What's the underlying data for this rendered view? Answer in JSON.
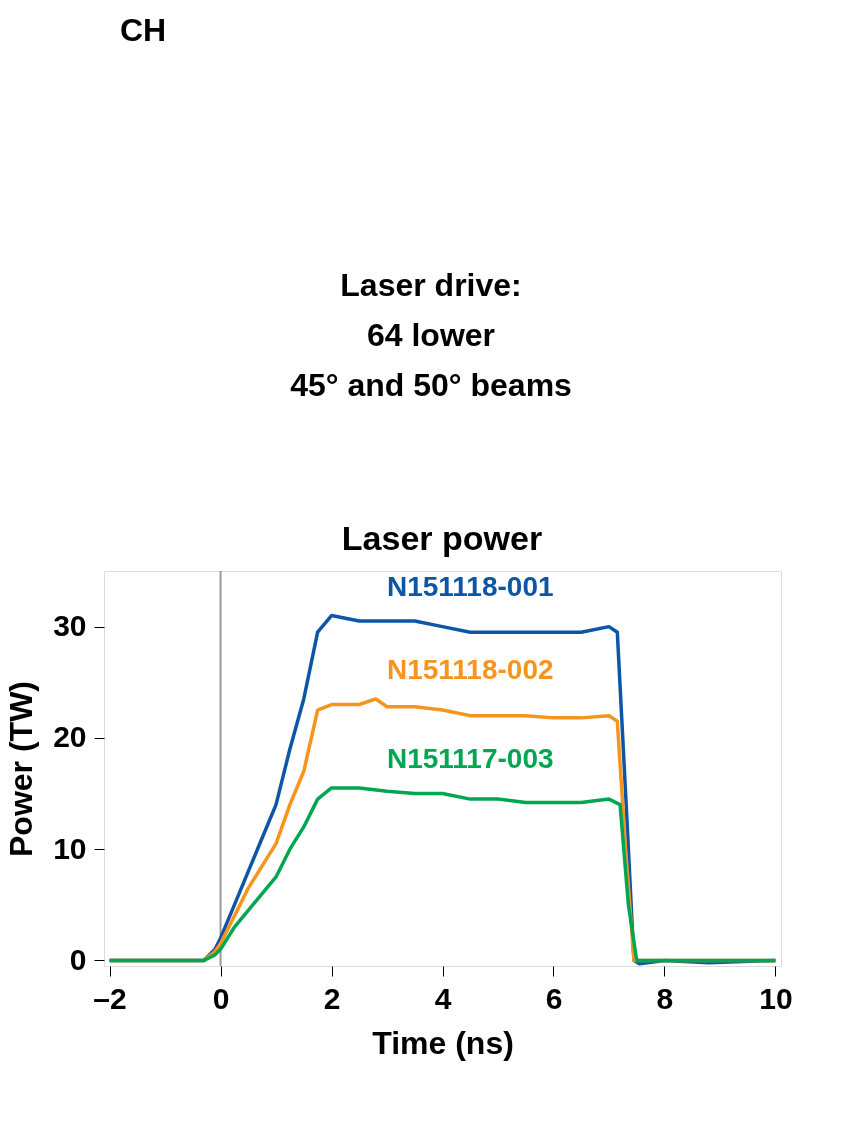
{
  "chart_data": {
    "type": "line",
    "title": "Laser power",
    "xlabel": "Time (ns)",
    "ylabel": "Power (TW)",
    "annotations": [
      "CH",
      "Laser drive:",
      "64 lower",
      "45° and 50° beams"
    ],
    "xlim": [
      -2.1,
      10.1
    ],
    "ylim": [
      -0.5,
      35
    ],
    "xticks": [
      {
        "value": -2,
        "label": "–2"
      },
      0,
      2,
      4,
      6,
      8,
      10
    ],
    "yticks": [
      0,
      10,
      20,
      30
    ],
    "grid": false,
    "legend": false,
    "line_style": "solid",
    "marker": "none",
    "ref_lines": [
      {
        "axis": "x",
        "value": 0,
        "label": null,
        "color": "#999999"
      }
    ],
    "series": [
      {
        "name": "N151118-001",
        "color": "#0d56a6",
        "x": [
          -2,
          -0.3,
          -0.1,
          0,
          0.25,
          0.5,
          0.75,
          1,
          1.25,
          1.5,
          1.75,
          2,
          2.5,
          3,
          3.5,
          4,
          4.5,
          5,
          5.5,
          6,
          6.5,
          7,
          7.15,
          7.3,
          7.45,
          7.55,
          8,
          8.8,
          10
        ],
        "values": [
          0,
          0,
          1,
          2,
          5,
          8,
          11,
          14,
          19,
          23.5,
          29.5,
          31,
          30.5,
          30.5,
          30.5,
          30,
          29.5,
          29.5,
          29.5,
          29.5,
          29.5,
          30,
          29.5,
          15,
          0,
          -0.3,
          0,
          -0.2,
          0
        ]
      },
      {
        "name": "N151118-002",
        "color": "#f7941d",
        "x": [
          -2,
          -0.3,
          -0.1,
          0,
          0.25,
          0.5,
          0.75,
          1,
          1.25,
          1.5,
          1.75,
          2,
          2.5,
          2.8,
          3,
          3.5,
          4,
          4.5,
          5,
          5.5,
          6,
          6.5,
          7,
          7.15,
          7.3,
          7.45,
          8,
          10
        ],
        "values": [
          0,
          0,
          0.8,
          1.5,
          4,
          6.5,
          8.5,
          10.5,
          14,
          17,
          22.5,
          23,
          23,
          23.5,
          22.8,
          22.8,
          22.5,
          22,
          22,
          22,
          21.8,
          21.8,
          22,
          21.5,
          10,
          0,
          0,
          0
        ]
      },
      {
        "name": "N151117-003",
        "color": "#00a651",
        "x": [
          -2,
          -0.3,
          -0.1,
          0,
          0.25,
          0.5,
          0.75,
          1,
          1.25,
          1.5,
          1.75,
          2,
          2.5,
          3,
          3.5,
          4,
          4.5,
          5,
          5.5,
          6,
          6.5,
          7,
          7.2,
          7.35,
          7.5,
          8,
          10
        ],
        "values": [
          0,
          0,
          0.5,
          1,
          3,
          4.5,
          6,
          7.5,
          10,
          12,
          14.5,
          15.5,
          15.5,
          15.2,
          15,
          15,
          14.5,
          14.5,
          14.2,
          14.2,
          14.2,
          14.5,
          14,
          5,
          0,
          0,
          0
        ]
      }
    ]
  }
}
